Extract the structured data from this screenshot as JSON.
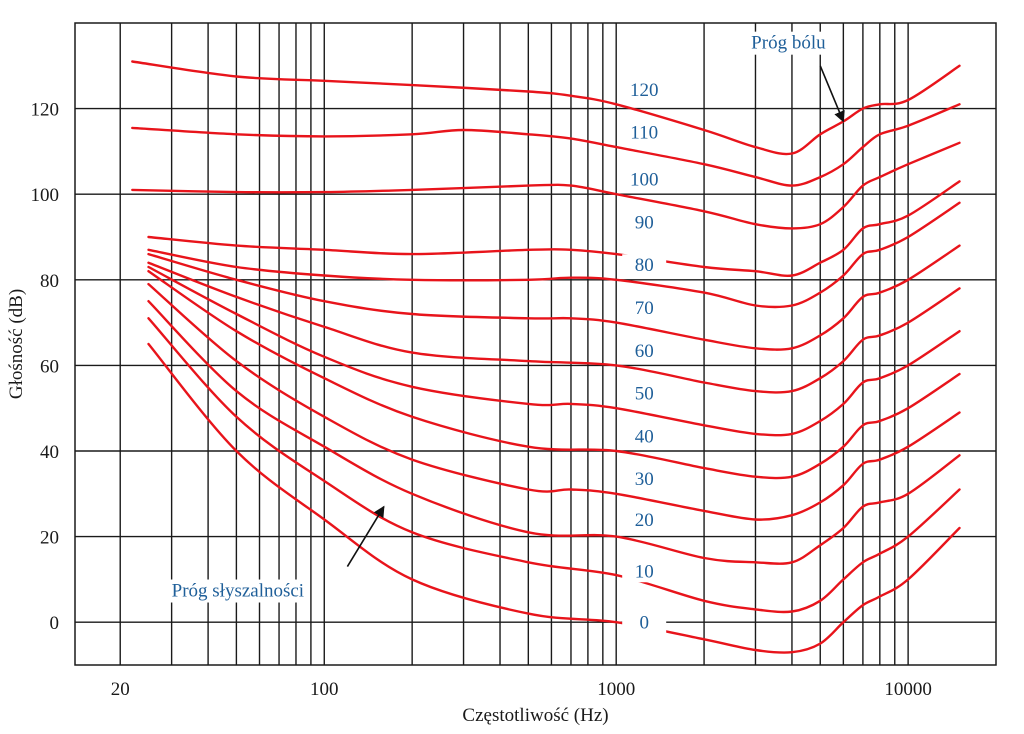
{
  "chart_data": {
    "type": "line",
    "xlabel": "Częstotliwość (Hz)",
    "ylabel": "Głośność (dB)",
    "xscale": "log",
    "xlim": [
      14,
      20000
    ],
    "ylim": [
      -10,
      140
    ],
    "grid": true,
    "xticks": [
      {
        "value": 20,
        "label": "20"
      },
      {
        "value": 100,
        "label": "100"
      },
      {
        "value": 1000,
        "label": "1000"
      },
      {
        "value": 10000,
        "label": "10000"
      }
    ],
    "yticks": [
      {
        "value": 0,
        "label": "0"
      },
      {
        "value": 20,
        "label": "20"
      },
      {
        "value": 40,
        "label": "40"
      },
      {
        "value": 60,
        "label": "60"
      },
      {
        "value": 80,
        "label": "80"
      },
      {
        "value": 100,
        "label": "100"
      },
      {
        "value": 120,
        "label": "120"
      }
    ],
    "x_gridlines": [
      20,
      30,
      40,
      50,
      60,
      70,
      80,
      90,
      100,
      200,
      300,
      400,
      500,
      600,
      700,
      800,
      900,
      1000,
      2000,
      3000,
      4000,
      5000,
      6000,
      7000,
      8000,
      9000,
      10000
    ],
    "line_color": "#e8141b",
    "label_color": "#1f5f99",
    "series": [
      {
        "label": "0",
        "label_at": [
          1000,
          -1.5
        ],
        "points": [
          [
            25,
            65
          ],
          [
            50,
            40
          ],
          [
            100,
            24
          ],
          [
            200,
            10
          ],
          [
            500,
            2
          ],
          [
            1000,
            0
          ],
          [
            2000,
            -4
          ],
          [
            3000,
            -6.5
          ],
          [
            4000,
            -7
          ],
          [
            5000,
            -5
          ],
          [
            6000,
            0
          ],
          [
            7000,
            4
          ],
          [
            8000,
            6
          ],
          [
            10000,
            10
          ],
          [
            15000,
            22
          ]
        ]
      },
      {
        "label": "10",
        "label_at": [
          1000,
          10.5
        ],
        "points": [
          [
            25,
            71
          ],
          [
            50,
            48
          ],
          [
            100,
            33
          ],
          [
            200,
            21
          ],
          [
            500,
            14
          ],
          [
            1000,
            11
          ],
          [
            2000,
            5
          ],
          [
            3000,
            3
          ],
          [
            4000,
            2.5
          ],
          [
            5000,
            5
          ],
          [
            6000,
            10
          ],
          [
            7000,
            14
          ],
          [
            8000,
            16
          ],
          [
            10000,
            20
          ],
          [
            15000,
            31
          ]
        ]
      },
      {
        "label": "20",
        "label_at": [
          1000,
          22.5
        ],
        "points": [
          [
            25,
            75
          ],
          [
            50,
            54
          ],
          [
            100,
            41
          ],
          [
            200,
            30
          ],
          [
            500,
            21
          ],
          [
            1000,
            20
          ],
          [
            2000,
            15
          ],
          [
            3000,
            14
          ],
          [
            4000,
            14
          ],
          [
            5000,
            18
          ],
          [
            6000,
            22
          ],
          [
            7000,
            27
          ],
          [
            8000,
            28
          ],
          [
            10000,
            30
          ],
          [
            15000,
            39
          ]
        ]
      },
      {
        "label": "30",
        "label_at": [
          1000,
          32
        ],
        "points": [
          [
            25,
            79
          ],
          [
            50,
            61
          ],
          [
            100,
            48
          ],
          [
            200,
            38
          ],
          [
            500,
            31
          ],
          [
            700,
            31
          ],
          [
            1000,
            30
          ],
          [
            2000,
            26
          ],
          [
            3000,
            24
          ],
          [
            4000,
            25
          ],
          [
            5000,
            28
          ],
          [
            6000,
            32
          ],
          [
            7000,
            37
          ],
          [
            8000,
            38
          ],
          [
            10000,
            41
          ],
          [
            15000,
            49
          ]
        ]
      },
      {
        "label": "40",
        "label_at": [
          1000,
          42
        ],
        "points": [
          [
            25,
            82
          ],
          [
            50,
            68
          ],
          [
            100,
            57
          ],
          [
            200,
            48
          ],
          [
            500,
            41
          ],
          [
            1000,
            40
          ],
          [
            2000,
            36
          ],
          [
            3000,
            34
          ],
          [
            4000,
            34
          ],
          [
            5000,
            37
          ],
          [
            6000,
            41
          ],
          [
            7000,
            46
          ],
          [
            8000,
            47
          ],
          [
            10000,
            50
          ],
          [
            15000,
            58
          ]
        ]
      },
      {
        "label": "50",
        "label_at": [
          1000,
          52
        ],
        "points": [
          [
            25,
            83
          ],
          [
            50,
            72
          ],
          [
            100,
            62
          ],
          [
            200,
            55
          ],
          [
            500,
            51
          ],
          [
            700,
            51
          ],
          [
            1000,
            50
          ],
          [
            2000,
            46
          ],
          [
            3000,
            44
          ],
          [
            4000,
            44
          ],
          [
            5000,
            47
          ],
          [
            6000,
            51
          ],
          [
            7000,
            56
          ],
          [
            8000,
            57
          ],
          [
            10000,
            60
          ],
          [
            15000,
            68
          ]
        ]
      },
      {
        "label": "60",
        "label_at": [
          1000,
          62
        ],
        "points": [
          [
            25,
            84
          ],
          [
            50,
            76
          ],
          [
            100,
            69
          ],
          [
            200,
            63
          ],
          [
            500,
            61
          ],
          [
            1000,
            60
          ],
          [
            2000,
            56
          ],
          [
            3000,
            54
          ],
          [
            4000,
            54
          ],
          [
            5000,
            57
          ],
          [
            6000,
            61
          ],
          [
            7000,
            66
          ],
          [
            8000,
            67
          ],
          [
            10000,
            70
          ],
          [
            15000,
            78
          ]
        ]
      },
      {
        "label": "70",
        "label_at": [
          1000,
          72
        ],
        "points": [
          [
            25,
            86
          ],
          [
            50,
            80
          ],
          [
            100,
            75
          ],
          [
            200,
            72
          ],
          [
            500,
            71
          ],
          [
            700,
            71
          ],
          [
            1000,
            70
          ],
          [
            2000,
            66
          ],
          [
            3000,
            64
          ],
          [
            4000,
            64
          ],
          [
            5000,
            67
          ],
          [
            6000,
            71
          ],
          [
            7000,
            76
          ],
          [
            8000,
            77
          ],
          [
            10000,
            80
          ],
          [
            15000,
            88
          ]
        ]
      },
      {
        "label": "80",
        "label_at": [
          1000,
          82
        ],
        "points": [
          [
            25,
            87
          ],
          [
            50,
            83
          ],
          [
            100,
            81
          ],
          [
            200,
            80
          ],
          [
            500,
            80
          ],
          [
            700,
            80.5
          ],
          [
            1000,
            80
          ],
          [
            2000,
            77
          ],
          [
            3000,
            74
          ],
          [
            4000,
            74
          ],
          [
            5000,
            77
          ],
          [
            6000,
            81
          ],
          [
            7000,
            86
          ],
          [
            8000,
            87
          ],
          [
            10000,
            90
          ],
          [
            15000,
            98
          ]
        ]
      },
      {
        "label": "90",
        "label_at": [
          1000,
          92
        ],
        "points": [
          [
            25,
            90
          ],
          [
            50,
            88
          ],
          [
            100,
            87
          ],
          [
            200,
            86
          ],
          [
            500,
            87
          ],
          [
            700,
            87
          ],
          [
            1000,
            86
          ],
          [
            2000,
            83
          ],
          [
            3000,
            82
          ],
          [
            4000,
            81
          ],
          [
            5000,
            84
          ],
          [
            6000,
            87
          ],
          [
            7000,
            92
          ],
          [
            8000,
            93
          ],
          [
            10000,
            95
          ],
          [
            15000,
            103
          ]
        ]
      },
      {
        "label": "100",
        "label_at": [
          1000,
          102
        ],
        "points": [
          [
            22,
            101
          ],
          [
            50,
            100.5
          ],
          [
            100,
            100.5
          ],
          [
            200,
            101
          ],
          [
            500,
            102
          ],
          [
            700,
            102
          ],
          [
            1000,
            100
          ],
          [
            2000,
            96
          ],
          [
            3000,
            93
          ],
          [
            4000,
            92
          ],
          [
            5000,
            93
          ],
          [
            6000,
            97
          ],
          [
            7000,
            102
          ],
          [
            8000,
            104
          ],
          [
            10000,
            107
          ],
          [
            15000,
            112
          ]
        ]
      },
      {
        "label": "110",
        "label_at": [
          1000,
          113
        ],
        "points": [
          [
            22,
            115.5
          ],
          [
            50,
            114
          ],
          [
            100,
            113.5
          ],
          [
            200,
            114
          ],
          [
            300,
            115
          ],
          [
            500,
            114
          ],
          [
            700,
            113
          ],
          [
            1000,
            111
          ],
          [
            2000,
            107
          ],
          [
            3000,
            104
          ],
          [
            4000,
            102
          ],
          [
            5000,
            104
          ],
          [
            6000,
            107
          ],
          [
            7000,
            111
          ],
          [
            8000,
            114
          ],
          [
            10000,
            116
          ],
          [
            15000,
            121
          ]
        ]
      },
      {
        "label": "120",
        "label_at": [
          1000,
          123
        ],
        "points": [
          [
            22,
            131
          ],
          [
            50,
            127.5
          ],
          [
            100,
            126.5
          ],
          [
            200,
            125.5
          ],
          [
            500,
            124
          ],
          [
            700,
            123
          ],
          [
            1000,
            121
          ],
          [
            2000,
            115
          ],
          [
            3000,
            111
          ],
          [
            4000,
            109.5
          ],
          [
            5000,
            114
          ],
          [
            6000,
            117
          ],
          [
            7000,
            120
          ],
          [
            8000,
            121
          ],
          [
            10000,
            122
          ],
          [
            15000,
            130
          ]
        ]
      }
    ],
    "annotations": [
      {
        "text": "Próg bólu",
        "text_at": [
          2900,
          134
        ],
        "arrow_from": [
          5000,
          130
        ],
        "arrow_to": [
          6000,
          117
        ]
      },
      {
        "text": "Próg słyszalności",
        "text_at": [
          30,
          6
        ],
        "arrow_from": [
          120,
          13
        ],
        "arrow_to": [
          160,
          27
        ]
      }
    ]
  }
}
